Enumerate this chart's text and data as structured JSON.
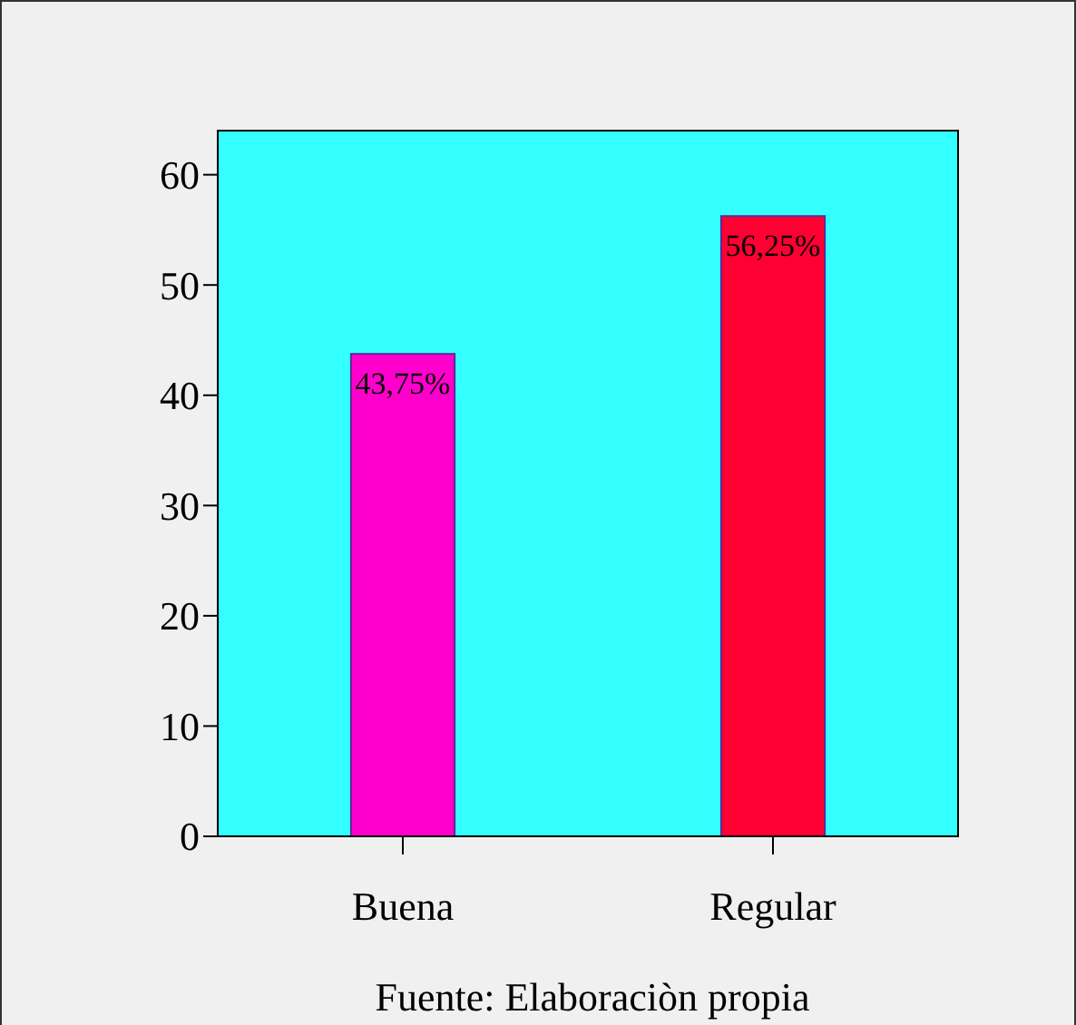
{
  "chart_data": {
    "type": "bar",
    "categories": [
      "Buena",
      "Regular"
    ],
    "values": [
      43.75,
      56.25
    ],
    "colors": [
      "#ff00cc",
      "#ff0033"
    ],
    "value_labels": [
      "43,75%",
      "56,25%"
    ],
    "ylim": [
      0,
      64
    ],
    "yticks": [
      0,
      10,
      20,
      30,
      40,
      50,
      60
    ],
    "grid": false,
    "annotations": [
      "Fuente: Elaboraciòn propia"
    ]
  }
}
